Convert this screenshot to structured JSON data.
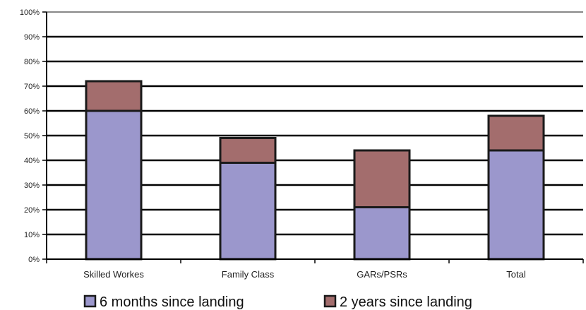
{
  "chart_data": {
    "type": "bar",
    "stacked": true,
    "categories": [
      "Skilled Workes",
      "Family Class",
      "GARs/PSRs",
      "Total"
    ],
    "series": [
      {
        "name": "6 months since landing",
        "values": [
          60,
          39,
          21,
          44
        ],
        "color": "#9b97cc"
      },
      {
        "name": "2 years since landing",
        "values": [
          12,
          10,
          23,
          14
        ],
        "color": "#a36d6d"
      }
    ],
    "ylim": [
      0,
      100
    ],
    "yticks": [
      "0%",
      "10%",
      "20%",
      "30%",
      "40%",
      "50%",
      "60%",
      "70%",
      "80%",
      "90%",
      "100%"
    ],
    "grid": true,
    "legend_position": "bottom"
  }
}
